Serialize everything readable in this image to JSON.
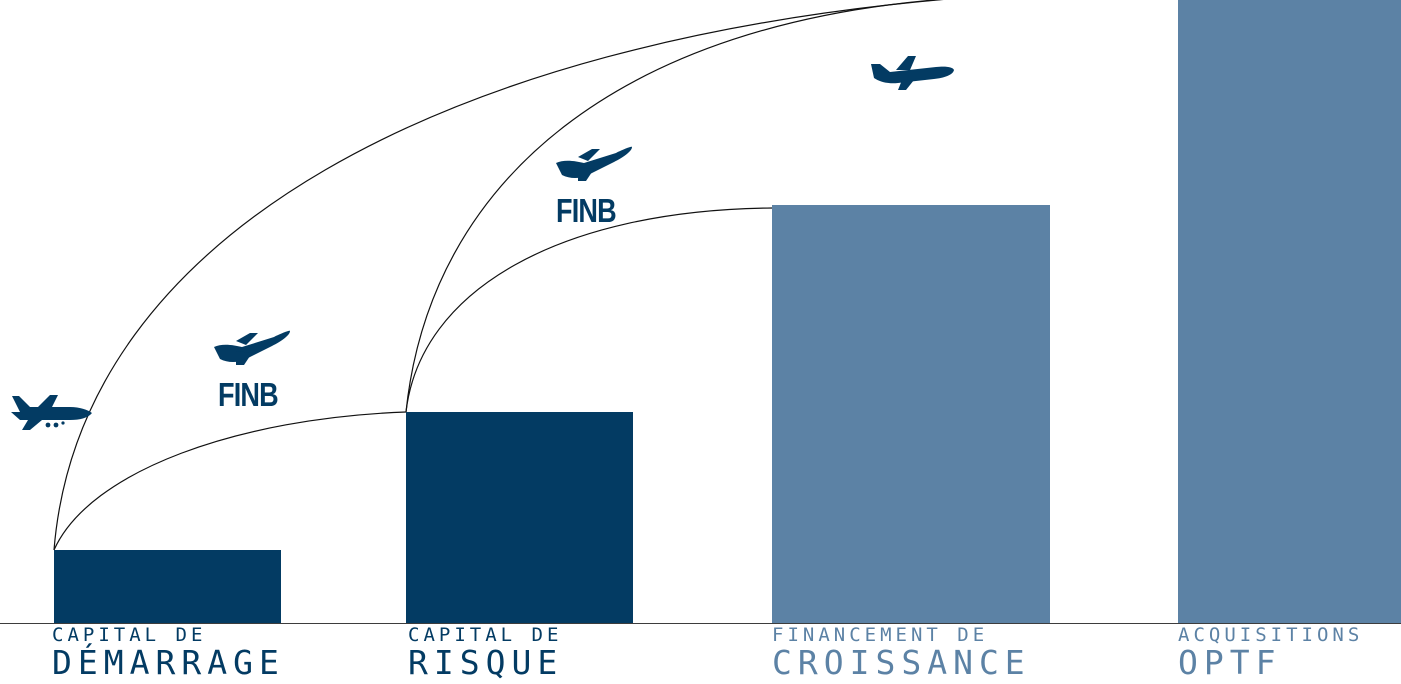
{
  "stages": [
    {
      "small": "CAPITAL DE",
      "big": "DÉMARRAGE",
      "tone": "dark"
    },
    {
      "small": "CAPITAL DE",
      "big": "RISQUE",
      "tone": "dark"
    },
    {
      "small": "FINANCEMENT DE",
      "big": "CROISSANCE",
      "tone": "light"
    },
    {
      "small": "ACQUISITIONS",
      "big": "OPTF",
      "tone": "light"
    }
  ],
  "brand": {
    "finb_1": "FINB",
    "finb_2": "FINB"
  },
  "icons": {
    "plane": "airplane-icon",
    "plane_takeoff": "airplane-takeoff-icon"
  },
  "colors": {
    "dark": "#033b63",
    "light": "#5c82a5",
    "curve": "#111111",
    "baseline": "#3d3d3d"
  }
}
